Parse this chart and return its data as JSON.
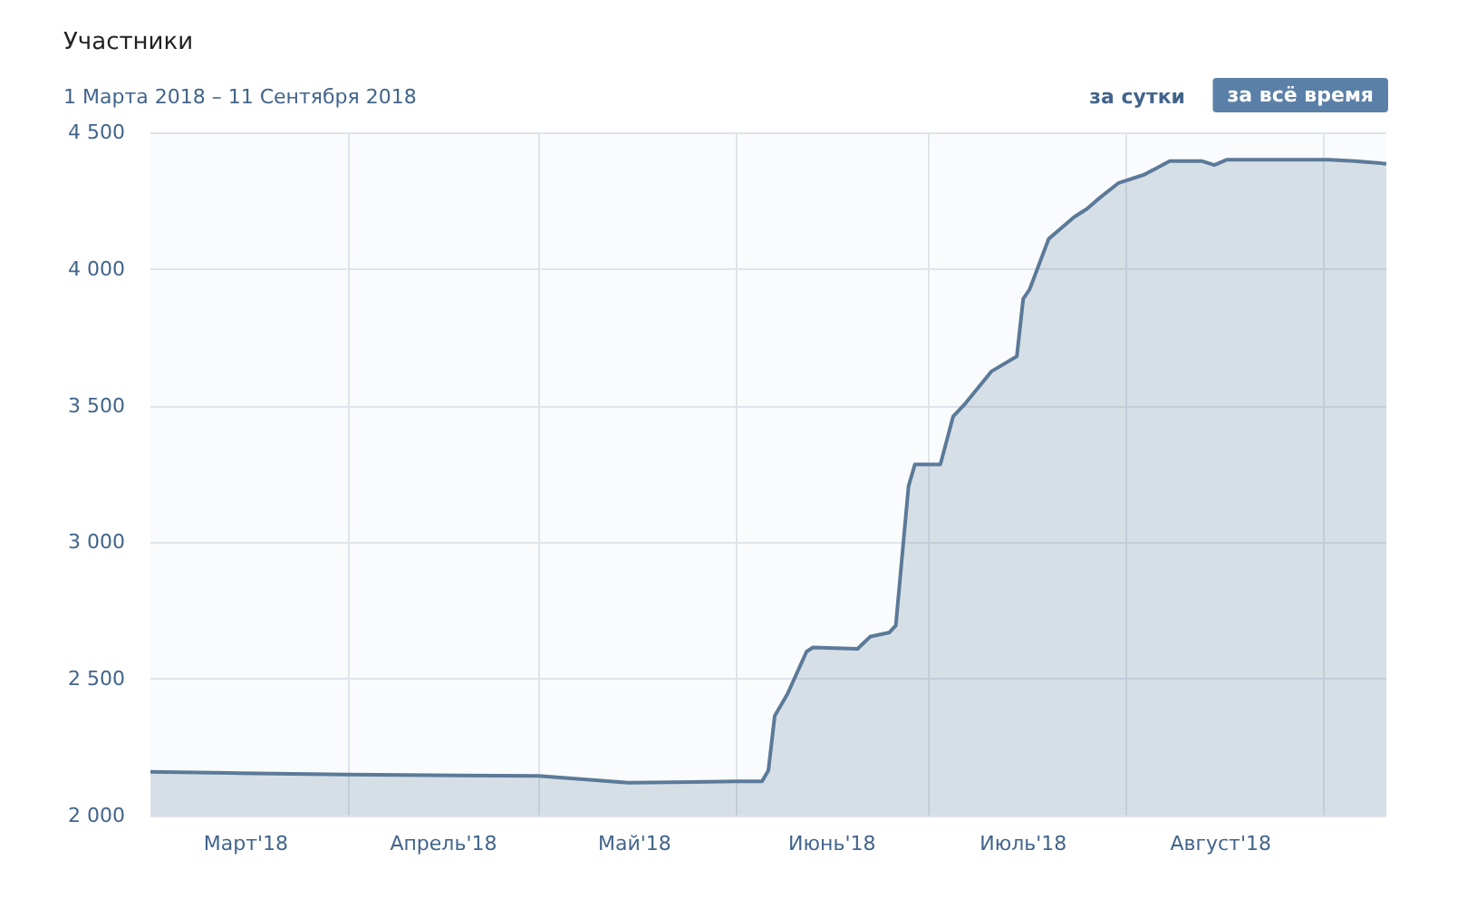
{
  "chart_data": {
    "type": "area",
    "title": "Участники",
    "subtitle": "1 Марта 2018 – 11 Сентября 2018",
    "annotations": [
      "за сутки",
      "за всё время"
    ],
    "x": [
      "2018-03-01",
      "2018-03-15",
      "2018-04-01",
      "2018-05-01",
      "2018-05-15",
      "2018-06-01",
      "2018-06-05",
      "2018-06-06",
      "2018-06-07",
      "2018-06-09",
      "2018-06-12",
      "2018-06-13",
      "2018-06-20",
      "2018-06-22",
      "2018-06-25",
      "2018-06-26",
      "2018-06-28",
      "2018-06-29",
      "2018-07-03",
      "2018-07-05",
      "2018-07-07",
      "2018-07-11",
      "2018-07-15",
      "2018-07-16",
      "2018-07-17",
      "2018-07-20",
      "2018-07-24",
      "2018-07-26",
      "2018-07-28",
      "2018-07-31",
      "2018-08-04",
      "2018-08-08",
      "2018-08-13",
      "2018-08-15",
      "2018-08-17",
      "2018-08-23",
      "2018-09-02",
      "2018-09-06",
      "2018-09-11"
    ],
    "values": [
      2160,
      2155,
      2150,
      2145,
      2120,
      2125,
      2125,
      2165,
      2365,
      2445,
      2600,
      2615,
      2610,
      2655,
      2670,
      2695,
      3205,
      3285,
      3285,
      3460,
      3510,
      3625,
      3680,
      3890,
      3925,
      4110,
      4190,
      4220,
      4260,
      4315,
      4345,
      4395,
      4395,
      4380,
      4400,
      4400,
      4400,
      4395,
      4385
    ],
    "color": "#5b7a99",
    "xlim": [
      "2018-03-01",
      "2018-09-11"
    ],
    "xticks": [
      {
        "value": "2018-04-01",
        "label": null
      },
      {
        "value": "2018-05-01",
        "label": null
      },
      {
        "value": "2018-06-01",
        "label": null
      },
      {
        "value": "2018-07-01",
        "label": null
      },
      {
        "value": "2018-08-01",
        "label": null
      },
      {
        "value": "2018-09-01",
        "label": null
      },
      {
        "value": "2018-03-16",
        "label": "Март'18"
      },
      {
        "value": "2018-04-16",
        "label": "Апрель'18"
      },
      {
        "value": "2018-05-16",
        "label": "Май'18"
      },
      {
        "value": "2018-06-16",
        "label": "Июнь'18"
      },
      {
        "value": "2018-07-16",
        "label": "Июль'18"
      },
      {
        "value": "2018-08-16",
        "label": "Август'18"
      }
    ],
    "ylim": [
      2000,
      4500
    ],
    "yticks": [
      {
        "value": 2000,
        "label": "2 000"
      },
      {
        "value": 2500,
        "label": "2 500"
      },
      {
        "value": 3000,
        "label": "3 000"
      },
      {
        "value": 3500,
        "label": "3 500"
      },
      {
        "value": 4000,
        "label": "4 000"
      },
      {
        "value": 4500,
        "label": "4 500"
      }
    ],
    "grid": true
  }
}
